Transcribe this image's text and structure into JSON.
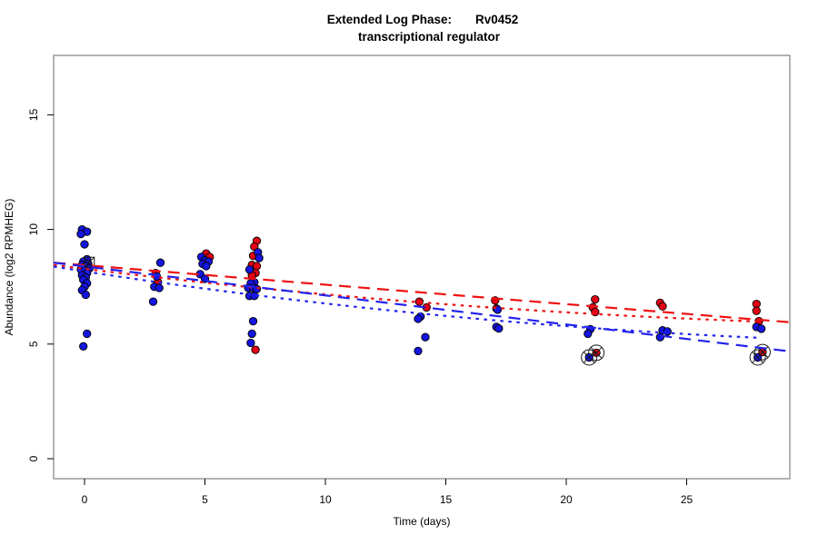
{
  "title": {
    "line1_left": "Extended Log Phase:",
    "line1_right": "Rv0452",
    "line2": "transcriptional regulator"
  },
  "chart_data": {
    "type": "scatter",
    "title": "Extended Log Phase: Rv0452 transcriptional regulator",
    "xlabel": "Time  (days)",
    "ylabel": "Abundance  (log2 RPMHEG)",
    "xlim": [
      -1.28,
      29.3
    ],
    "ylim": [
      -0.87,
      17.6
    ],
    "x_ticks": [
      0,
      5,
      10,
      15,
      20,
      25
    ],
    "y_ticks": [
      0,
      5,
      10,
      15
    ],
    "grid": false,
    "legend": "none",
    "colors": {
      "red": "#e30015",
      "blue": "#1515e0",
      "red_line": "#ee1111",
      "blue_line": "#2222ee",
      "point_stroke": "#000000",
      "box": "#808080",
      "flag": "#1a1a1a"
    },
    "series": [
      {
        "name": "red-points",
        "color_key": "red",
        "points": [
          [
            2.95,
            8.1
          ],
          [
            3.05,
            7.7
          ],
          [
            5.05,
            8.95
          ],
          [
            5.2,
            8.8
          ],
          [
            7.15,
            9.5
          ],
          [
            7.05,
            9.25
          ],
          [
            7.0,
            8.85
          ],
          [
            6.95,
            8.45
          ],
          [
            7.15,
            8.4
          ],
          [
            7.1,
            8.1
          ],
          [
            6.95,
            8.0
          ],
          [
            7.1,
            4.75
          ],
          [
            13.9,
            6.85
          ],
          [
            14.2,
            6.6
          ],
          [
            17.05,
            6.9
          ],
          [
            17.1,
            6.55
          ],
          [
            21.2,
            6.95
          ],
          [
            21.1,
            6.6
          ],
          [
            21.2,
            6.4
          ],
          [
            23.9,
            6.8
          ],
          [
            24.0,
            6.65
          ],
          [
            27.9,
            6.75
          ],
          [
            27.9,
            6.45
          ],
          [
            28.0,
            6.0
          ]
        ]
      },
      {
        "name": "blue-points",
        "color_key": "blue",
        "points": [
          [
            -0.1,
            10.0
          ],
          [
            0.1,
            9.9
          ],
          [
            -0.15,
            9.8
          ],
          [
            0.0,
            9.35
          ],
          [
            0.1,
            8.7
          ],
          [
            -0.05,
            8.6
          ],
          [
            0.15,
            8.5
          ],
          [
            -0.1,
            8.45
          ],
          [
            0.05,
            8.4
          ],
          [
            0.2,
            8.3
          ],
          [
            -0.15,
            8.25
          ],
          [
            0.0,
            8.2
          ],
          [
            0.1,
            8.1
          ],
          [
            -0.1,
            8.0
          ],
          [
            0.05,
            7.9
          ],
          [
            -0.05,
            7.8
          ],
          [
            0.1,
            7.65
          ],
          [
            0.0,
            7.5
          ],
          [
            -0.1,
            7.35
          ],
          [
            0.05,
            7.15
          ],
          [
            0.1,
            5.45
          ],
          [
            -0.05,
            4.9
          ],
          [
            3.15,
            8.55
          ],
          [
            3.0,
            7.95
          ],
          [
            2.9,
            7.5
          ],
          [
            3.1,
            7.45
          ],
          [
            2.85,
            6.85
          ],
          [
            4.85,
            8.8
          ],
          [
            5.0,
            8.65
          ],
          [
            5.15,
            8.6
          ],
          [
            4.9,
            8.5
          ],
          [
            5.05,
            8.4
          ],
          [
            4.8,
            8.05
          ],
          [
            5.0,
            7.85
          ],
          [
            7.2,
            9.0
          ],
          [
            7.25,
            8.75
          ],
          [
            6.85,
            8.25
          ],
          [
            7.05,
            7.7
          ],
          [
            6.9,
            7.65
          ],
          [
            6.8,
            7.45
          ],
          [
            7.0,
            7.45
          ],
          [
            7.15,
            7.4
          ],
          [
            6.85,
            7.1
          ],
          [
            7.05,
            7.1
          ],
          [
            7.0,
            6.0
          ],
          [
            6.95,
            5.45
          ],
          [
            6.9,
            5.05
          ],
          [
            13.95,
            6.2
          ],
          [
            13.85,
            6.1
          ],
          [
            14.15,
            5.3
          ],
          [
            13.85,
            4.7
          ],
          [
            17.15,
            6.5
          ],
          [
            17.1,
            5.75
          ],
          [
            17.2,
            5.68
          ],
          [
            21.0,
            5.65
          ],
          [
            20.9,
            5.45
          ],
          [
            24.0,
            5.6
          ],
          [
            24.2,
            5.55
          ],
          [
            23.9,
            5.3
          ],
          [
            27.9,
            5.75
          ],
          [
            28.1,
            5.67
          ]
        ]
      }
    ],
    "flagged_points": [
      {
        "x": 21.25,
        "y": 4.62,
        "color_key": "red",
        "marker": "circle-x"
      },
      {
        "x": 20.95,
        "y": 4.42,
        "color_key": "blue",
        "marker": "circle-x"
      },
      {
        "x": 28.15,
        "y": 4.65,
        "color_key": "red",
        "marker": "circle-x"
      },
      {
        "x": 27.95,
        "y": 4.42,
        "color_key": "blue",
        "marker": "circle-x"
      },
      {
        "x": 0.2,
        "y": 8.57,
        "color_key": "none",
        "marker": "square-x"
      }
    ],
    "trend_lines": [
      {
        "name": "red-dashed",
        "color_key": "red_line",
        "style": "dashed",
        "from": [
          -1.28,
          8.55
        ],
        "to": [
          29.3,
          5.95
        ]
      },
      {
        "name": "red-dotted",
        "color_key": "red_line",
        "style": "dotted",
        "from": [
          -1.28,
          8.45
        ],
        "ctrl": [
          13,
          6.55
        ],
        "to": [
          28.1,
          5.98
        ]
      },
      {
        "name": "blue-dashed",
        "color_key": "blue_line",
        "style": "dashed",
        "from": [
          -1.28,
          8.55
        ],
        "to": [
          29.3,
          4.68
        ]
      },
      {
        "name": "blue-dotted",
        "color_key": "blue_line",
        "style": "dotted",
        "from": [
          -1.28,
          8.38
        ],
        "ctrl": [
          13,
          6.0
        ],
        "to": [
          28.1,
          5.27
        ]
      }
    ]
  }
}
